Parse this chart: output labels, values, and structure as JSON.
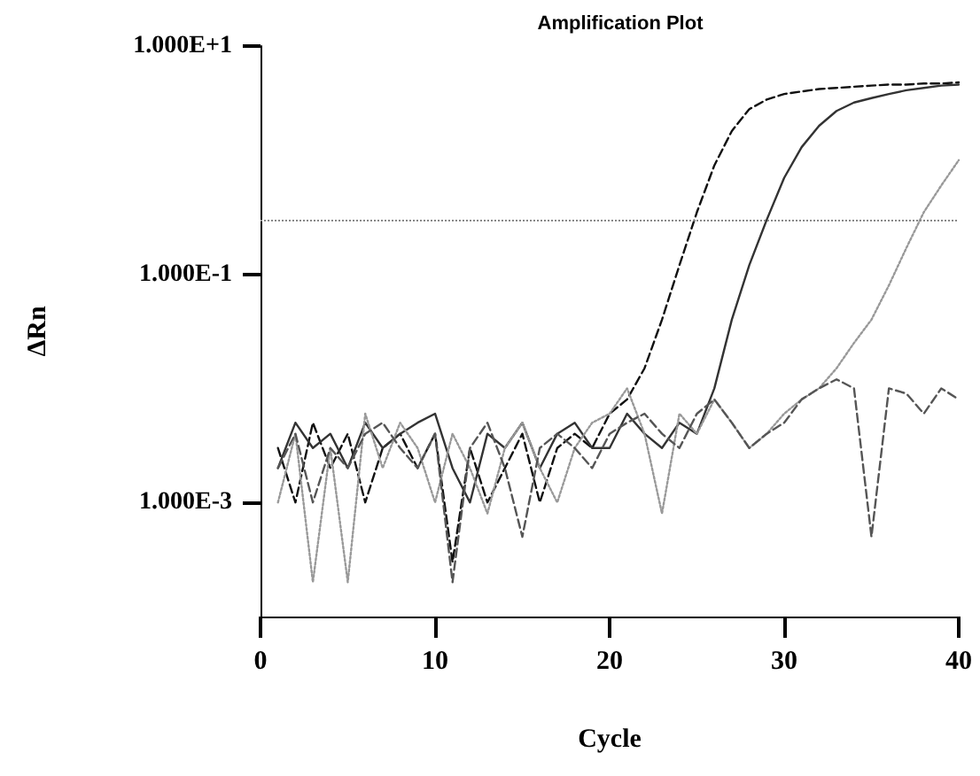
{
  "chart_data": {
    "type": "line",
    "title": "Amplification Plot",
    "xlabel": "Cycle",
    "ylabel": "ΔRn",
    "log": "y",
    "grid": false,
    "marker": "none",
    "xlim": [
      0,
      40
    ],
    "xticks": [
      0,
      10,
      20,
      30,
      40
    ],
    "ylim": [
      0.0001,
      10
    ],
    "yticks": [
      {
        "value": 10,
        "label": "1.000E+1"
      },
      {
        "value": 0.1,
        "label": "1.000E-1"
      },
      {
        "value": 0.001,
        "label": "1.000E-3"
      }
    ],
    "ref_lines": [
      {
        "axis": "y",
        "value": 0.3,
        "color": "#888888",
        "line_style": "dotted"
      }
    ],
    "x": [
      1,
      2,
      3,
      4,
      5,
      6,
      7,
      8,
      9,
      10,
      11,
      12,
      13,
      14,
      15,
      16,
      17,
      18,
      19,
      20,
      21,
      22,
      23,
      24,
      25,
      26,
      27,
      28,
      29,
      30,
      31,
      32,
      33,
      34,
      35,
      36,
      37,
      38,
      39,
      40
    ],
    "series": [
      {
        "color": "#111111",
        "line_style": "dashed",
        "values": [
          0.003,
          0.001,
          0.005,
          0.002,
          0.004,
          0.001,
          0.003,
          0.004,
          0.002,
          0.004,
          0.0003,
          0.003,
          0.001,
          0.002,
          0.004,
          0.001,
          0.003,
          0.004,
          0.003,
          0.006,
          0.008,
          0.015,
          0.04,
          0.12,
          0.35,
          0.9,
          1.8,
          2.8,
          3.4,
          3.8,
          4.0,
          4.2,
          4.3,
          4.4,
          4.5,
          4.6,
          4.6,
          4.7,
          4.7,
          4.8
        ]
      },
      {
        "color": "#333333",
        "line_style": "solid",
        "values": [
          0.002,
          0.005,
          0.003,
          0.004,
          0.002,
          0.005,
          0.003,
          0.004,
          0.005,
          0.006,
          0.002,
          0.001,
          0.004,
          0.003,
          0.005,
          0.002,
          0.004,
          0.005,
          0.003,
          0.003,
          0.006,
          0.004,
          0.003,
          0.005,
          0.004,
          0.01,
          0.04,
          0.12,
          0.3,
          0.7,
          1.3,
          2.0,
          2.7,
          3.2,
          3.5,
          3.8,
          4.1,
          4.3,
          4.5,
          4.6
        ]
      },
      {
        "color": "#999999",
        "line_style": "dotted",
        "values": [
          0.001,
          0.004,
          0.0002,
          0.003,
          0.0002,
          0.006,
          0.002,
          0.005,
          0.003,
          0.001,
          0.004,
          0.002,
          0.0008,
          0.003,
          0.005,
          0.002,
          0.001,
          0.003,
          0.005,
          0.006,
          0.01,
          0.004,
          0.0008,
          0.006,
          0.004,
          0.008,
          0.005,
          0.003,
          0.004,
          0.006,
          0.008,
          0.01,
          0.015,
          0.025,
          0.04,
          0.08,
          0.17,
          0.35,
          0.6,
          1.0
        ]
      },
      {
        "color": "#555555",
        "line_style": "dashed",
        "values": [
          0.002,
          0.004,
          0.001,
          0.003,
          0.002,
          0.004,
          0.005,
          0.003,
          0.002,
          0.004,
          0.0002,
          0.003,
          0.005,
          0.002,
          0.0005,
          0.003,
          0.004,
          0.003,
          0.002,
          0.004,
          0.005,
          0.006,
          0.004,
          0.003,
          0.006,
          0.008,
          0.005,
          0.003,
          0.004,
          0.005,
          0.008,
          0.01,
          0.012,
          0.01,
          0.0005,
          0.01,
          0.009,
          0.006,
          0.01,
          0.008
        ]
      }
    ]
  }
}
